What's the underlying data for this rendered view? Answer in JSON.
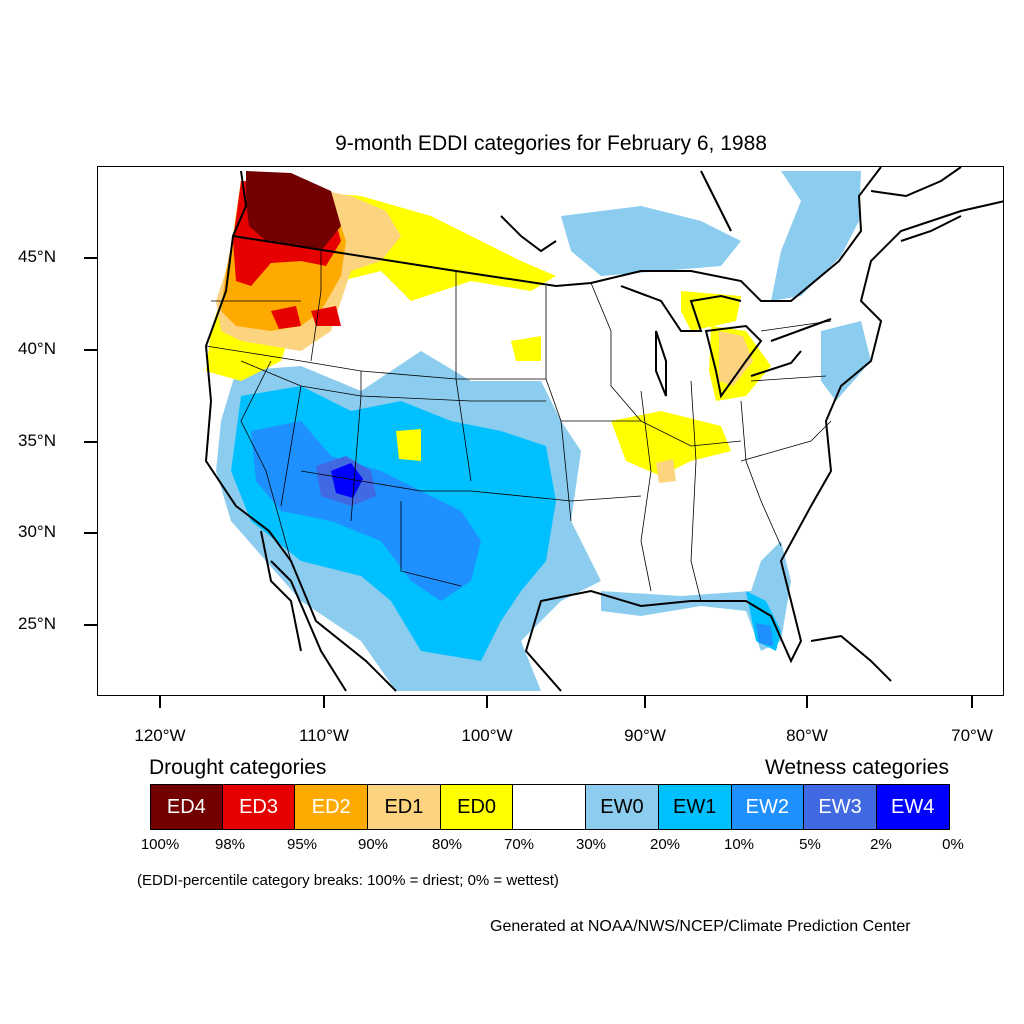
{
  "map": {
    "title": "9-month EDDI categories for February 6, 1988",
    "lat_labels": [
      "45°N",
      "40°N",
      "35°N",
      "30°N",
      "25°N"
    ],
    "lon_labels": [
      "120°W",
      "110°W",
      "100°W",
      "90°W",
      "80°W",
      "70°W"
    ],
    "colors": {
      "ED4": "#730000",
      "ED3": "#e60000",
      "ED2": "#ffaa00",
      "ED1": "#fcd37f",
      "ED0": "#ffff00",
      "neutral": "#ffffff",
      "EW0": "#8ccdef",
      "EW1": "#00c0ff",
      "EW2": "#1e90ff",
      "EW3": "#4169e1",
      "EW4": "#0000ff"
    }
  },
  "legend": {
    "drought_heading": "Drought categories",
    "wetness_heading": "Wetness categories",
    "categories": [
      {
        "label": "ED4",
        "color": "#730000",
        "text_color": "#ffffff"
      },
      {
        "label": "ED3",
        "color": "#e60000",
        "text_color": "#ffffff"
      },
      {
        "label": "ED2",
        "color": "#ffaa00",
        "text_color": "#ffffff"
      },
      {
        "label": "ED1",
        "color": "#fcd37f",
        "text_color": "#000000"
      },
      {
        "label": "ED0",
        "color": "#ffff00",
        "text_color": "#000000"
      },
      {
        "label": "",
        "color": "#ffffff",
        "text_color": "#000000"
      },
      {
        "label": "EW0",
        "color": "#8ccdef",
        "text_color": "#000000"
      },
      {
        "label": "EW1",
        "color": "#00c0ff",
        "text_color": "#000000"
      },
      {
        "label": "EW2",
        "color": "#1e90ff",
        "text_color": "#ffffff"
      },
      {
        "label": "EW3",
        "color": "#4169e1",
        "text_color": "#ffffff"
      },
      {
        "label": "EW4",
        "color": "#0000ff",
        "text_color": "#ffffff"
      }
    ],
    "breaks": [
      "100%",
      "98%",
      "95%",
      "90%",
      "80%",
      "70%",
      "30%",
      "20%",
      "10%",
      "5%",
      "2%",
      "0%"
    ],
    "note": "(EDDI-percentile category breaks: 100% = driest; 0% = wettest)"
  },
  "credit": "Generated at NOAA/NWS/NCEP/Climate Prediction Center"
}
